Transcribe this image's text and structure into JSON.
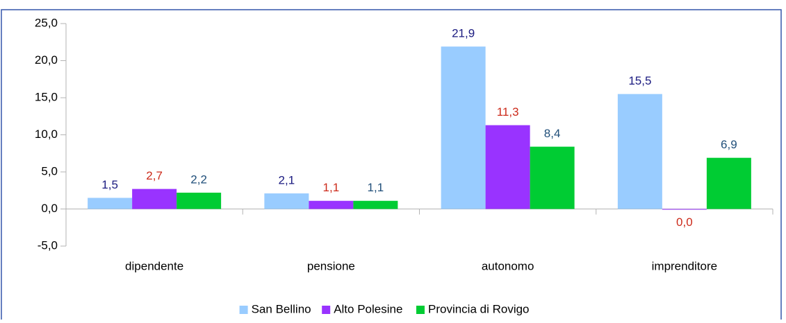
{
  "chart_data": {
    "type": "bar",
    "categories": [
      "dipendente",
      "pensione",
      "autonomo",
      "imprenditore"
    ],
    "series": [
      {
        "name": "San Bellino",
        "color": "#99ccff",
        "label_color": "#1a1a80",
        "values": [
          1.5,
          2.1,
          21.9,
          15.5
        ],
        "value_labels": [
          "1,5",
          "2,1",
          "21,9",
          "15,5"
        ]
      },
      {
        "name": "Alto Polesine",
        "color": "#9933ff",
        "label_color": "#cc2a1a",
        "values": [
          2.7,
          1.1,
          11.3,
          0.0
        ],
        "value_labels": [
          "2,7",
          "1,1",
          "11,3",
          "0,0"
        ]
      },
      {
        "name": "Provincia di Rovigo",
        "color": "#00cc33",
        "label_color": "#1f4e79",
        "values": [
          2.2,
          1.1,
          8.4,
          6.9
        ],
        "value_labels": [
          "2,2",
          "1,1",
          "8,4",
          "6,9"
        ]
      }
    ],
    "ylim": [
      -5,
      25
    ],
    "yticks": [
      {
        "value": -5,
        "label": "-5,0"
      },
      {
        "value": 0,
        "label": "0,0"
      },
      {
        "value": 5,
        "label": "5,0"
      },
      {
        "value": 10,
        "label": "10,0"
      },
      {
        "value": 15,
        "label": "15,0"
      },
      {
        "value": 20,
        "label": "20,0"
      },
      {
        "value": 25,
        "label": "25,0"
      }
    ],
    "legend": "bottom"
  }
}
